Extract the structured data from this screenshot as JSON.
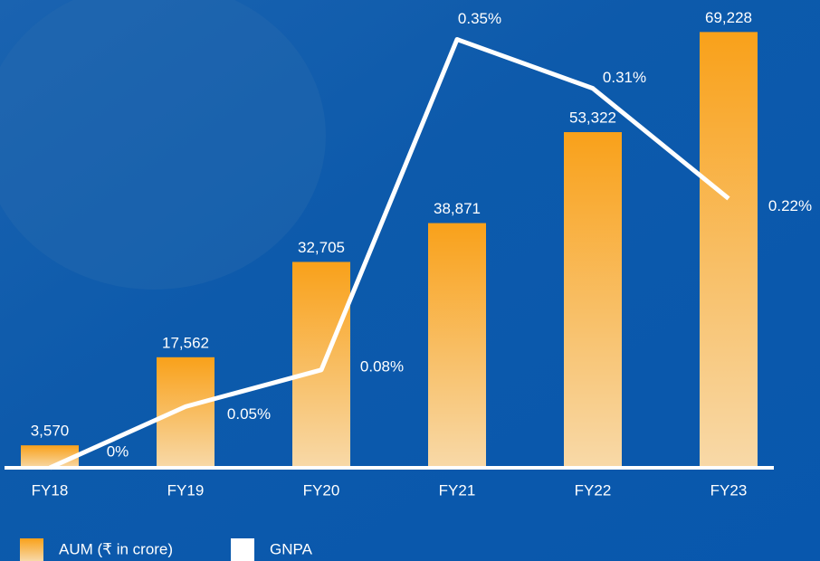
{
  "chart_data": {
    "type": "bar_line",
    "categories": [
      "FY18",
      "FY19",
      "FY20",
      "FY21",
      "FY22",
      "FY23"
    ],
    "series": [
      {
        "name": "AUM (₹ in crore)",
        "type": "bar",
        "color": "#f9a21b",
        "values": [
          3570,
          17562,
          32705,
          38871,
          53322,
          69228
        ],
        "value_labels": [
          "3,570",
          "17,562",
          "32,705",
          "38,871",
          "53,322",
          "69,228"
        ]
      },
      {
        "name": "GNPA",
        "type": "line",
        "axis": "y2",
        "color": "#ffffff",
        "values": [
          0,
          0.05,
          0.08,
          0.35,
          0.31,
          0.22
        ],
        "value_labels": [
          "0%",
          "0.05%",
          "0.08%",
          "0.35%",
          "0.31%",
          "0.22%"
        ]
      }
    ],
    "ylim": [
      0,
      70000
    ],
    "y2lim": [
      0,
      0.36
    ],
    "legend": "bottom-left"
  }
}
